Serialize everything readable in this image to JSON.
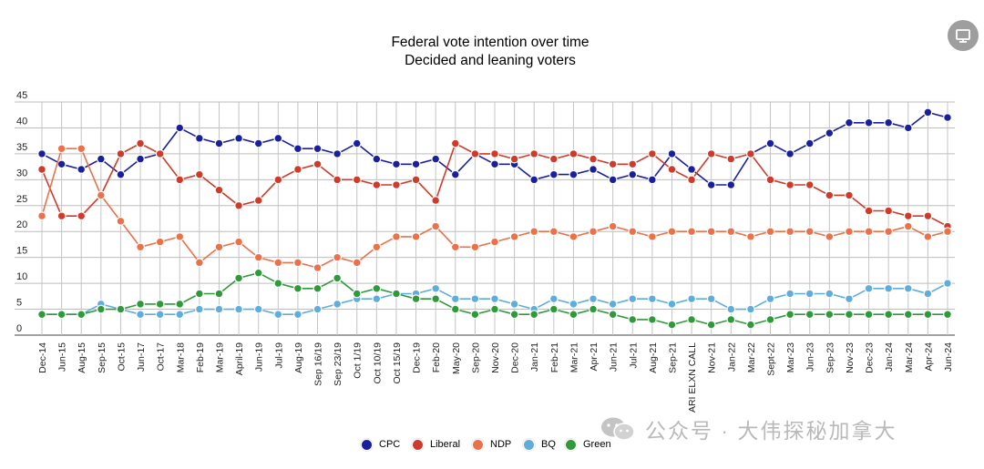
{
  "chart_data": {
    "type": "line",
    "title": "Federal vote intention over time",
    "subtitle": "Decided and leaning voters",
    "ylim": [
      0,
      45
    ],
    "yticks": [
      0,
      5,
      10,
      15,
      20,
      25,
      30,
      35,
      40,
      45
    ],
    "grid": true,
    "legend_position": "bottom",
    "categories": [
      "Dec-14",
      "Jun-15",
      "Aug-15",
      "Sep-15",
      "Oct-15",
      "Jun-17",
      "Oct-17",
      "Mar-18",
      "Feb-19",
      "Mar-19",
      "April-19",
      "Jun-19",
      "Jul-19",
      "Aug-19",
      "Sep 16/19",
      "Sep 23/19",
      "Oct 1/19",
      "Oct 10/19",
      "Oct 15/19",
      "Dec-19",
      "Feb-20",
      "May-20",
      "Sep-20",
      "Nov-20",
      "Dec-20",
      "Jan-21",
      "Feb-21",
      "Mar-21",
      "Apr-21",
      "Jun-21",
      "Jul-21",
      "Aug-21",
      "Sep-21",
      "ARI ELXN CALL",
      "Nov-21",
      "Jan-22",
      "Mar-22",
      "Sept-22",
      "Mar-23",
      "Jun-23",
      "Sep-23",
      "Nov-23",
      "Dec-23",
      "Jan-24",
      "Mar-24",
      "Apr-24",
      "Jun-24"
    ],
    "series": [
      {
        "name": "CPC",
        "color": "#1a1f9e",
        "values": [
          35,
          33,
          32,
          34,
          31,
          34,
          35,
          40,
          38,
          37,
          38,
          37,
          38,
          36,
          36,
          35,
          37,
          34,
          33,
          33,
          34,
          31,
          35,
          33,
          33,
          30,
          31,
          31,
          32,
          30,
          31,
          30,
          35,
          32,
          29,
          29,
          35,
          37,
          35,
          37,
          39,
          41,
          41,
          41,
          40,
          43,
          42
        ]
      },
      {
        "name": "Liberal",
        "color": "#d03a2a",
        "values": [
          32,
          23,
          23,
          27,
          35,
          37,
          35,
          30,
          31,
          28,
          25,
          26,
          30,
          32,
          33,
          30,
          30,
          29,
          29,
          30,
          26,
          37,
          35,
          35,
          34,
          35,
          34,
          35,
          34,
          33,
          33,
          35,
          32,
          30,
          35,
          34,
          35,
          30,
          29,
          29,
          27,
          27,
          24,
          24,
          23,
          23,
          21
        ]
      },
      {
        "name": "NDP",
        "color": "#ec7048",
        "values": [
          23,
          36,
          36,
          27,
          22,
          17,
          18,
          19,
          14,
          17,
          18,
          15,
          14,
          14,
          13,
          15,
          14,
          17,
          19,
          19,
          21,
          17,
          17,
          18,
          19,
          20,
          20,
          19,
          20,
          21,
          20,
          19,
          20,
          20,
          20,
          20,
          19,
          20,
          20,
          20,
          19,
          20,
          20,
          20,
          21,
          19,
          20
        ]
      },
      {
        "name": "BQ",
        "color": "#5eaddc",
        "values": [
          4,
          4,
          4,
          6,
          5,
          4,
          4,
          4,
          5,
          5,
          5,
          5,
          4,
          4,
          5,
          6,
          7,
          7,
          8,
          8,
          9,
          7,
          7,
          7,
          6,
          5,
          7,
          6,
          7,
          6,
          7,
          7,
          6,
          7,
          7,
          5,
          5,
          7,
          8,
          8,
          8,
          7,
          9,
          9,
          9,
          8,
          10
        ]
      },
      {
        "name": "Green",
        "color": "#2f9a3a",
        "values": [
          4,
          4,
          4,
          5,
          5,
          6,
          6,
          6,
          8,
          8,
          11,
          12,
          10,
          9,
          9,
          11,
          8,
          9,
          8,
          7,
          7,
          5,
          4,
          5,
          4,
          4,
          5,
          4,
          5,
          4,
          3,
          3,
          2,
          3,
          2,
          3,
          2,
          3,
          4,
          4,
          4,
          4,
          4,
          4,
          4,
          4,
          4
        ]
      }
    ]
  },
  "watermark_text": "公众号 · 大伟探秘加拿大",
  "icons": {
    "menu": "presentation-icon",
    "watermark": "wechat-icon"
  }
}
